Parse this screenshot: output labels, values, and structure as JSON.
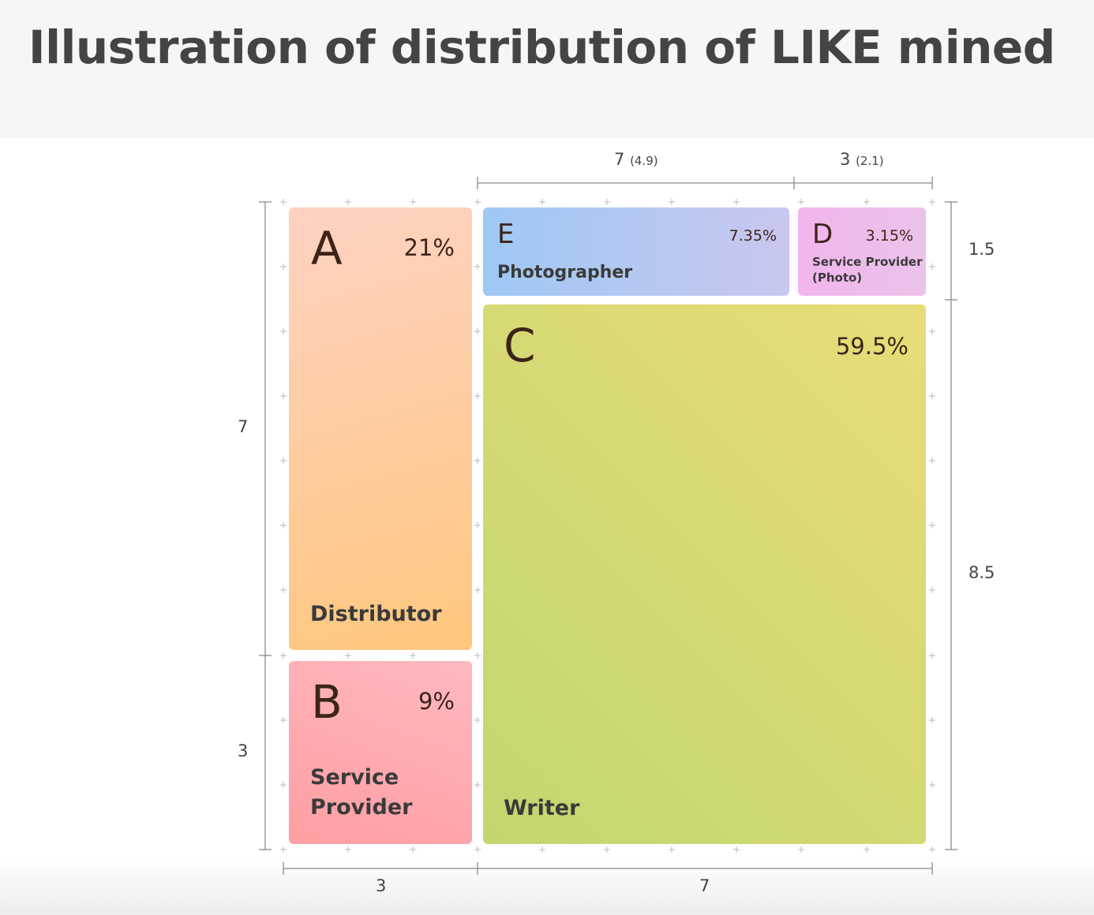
{
  "title": "Illustration of distribution of LIKE mined",
  "cells": {
    "A": {
      "letter": "A",
      "percent": "21%",
      "role": "Distributor",
      "colors": [
        "#fed2c2",
        "#fec77e"
      ]
    },
    "B": {
      "letter": "B",
      "percent": "9%",
      "role_line1": "Service",
      "role_line2": "Provider",
      "colors": [
        "#ffb8c0",
        "#fe9ea2"
      ]
    },
    "E": {
      "letter": "E",
      "percent": "7.35%",
      "role": "Photographer",
      "colors": [
        "#9ec8f4",
        "#c9c7ef"
      ]
    },
    "D": {
      "letter": "D",
      "percent": "3.15%",
      "role_line1": "Service Provider",
      "role_line2": "(Photo)",
      "colors": [
        "#f2b5ec",
        "#ebc2ea"
      ]
    },
    "C": {
      "letter": "C",
      "percent": "59.5%",
      "role": "Writer",
      "colors": [
        "#e8dc78",
        "#c2d670"
      ]
    }
  },
  "dimensions": {
    "top_left": {
      "value": "7",
      "sub": "(4.9)"
    },
    "top_right": {
      "value": "3",
      "sub": "(2.1)"
    },
    "right_top": "1.5",
    "right_bottom": "8.5",
    "left_top": "7",
    "left_bottom": "3",
    "bottom_left": "3",
    "bottom_right": "7"
  }
}
